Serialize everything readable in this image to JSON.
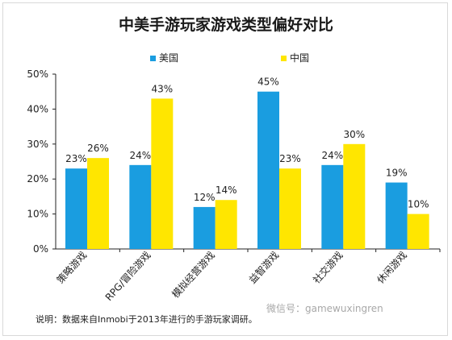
{
  "chart_data": {
    "type": "bar",
    "title": "中美手游玩家游戏类型偏好对比",
    "categories": [
      "策略游戏",
      "RPG/冒险游戏",
      "模拟经营游戏",
      "益智游戏",
      "社交游戏",
      "休闲游戏"
    ],
    "series": [
      {
        "name": "美国",
        "color": "#1a9de0",
        "values": [
          23,
          24,
          12,
          45,
          24,
          19
        ]
      },
      {
        "name": "中国",
        "color": "#ffe600",
        "values": [
          26,
          43,
          14,
          23,
          30,
          10
        ]
      }
    ],
    "data_labels": [
      [
        "23%",
        "24%",
        "12%",
        "45%",
        "24%",
        "19%"
      ],
      [
        "26%",
        "43%",
        "14%",
        "23%",
        "30%",
        "10%"
      ]
    ],
    "y_ticks": [
      "0%",
      "10%",
      "20%",
      "30%",
      "40%",
      "50%"
    ],
    "ylim": [
      0,
      50
    ],
    "grid": false,
    "legend_position": "top-center"
  },
  "footnote": "说明：数据来自Inmobi于2013年进行的手游玩家调研。",
  "watermark": "微信号：gamewuxingren"
}
